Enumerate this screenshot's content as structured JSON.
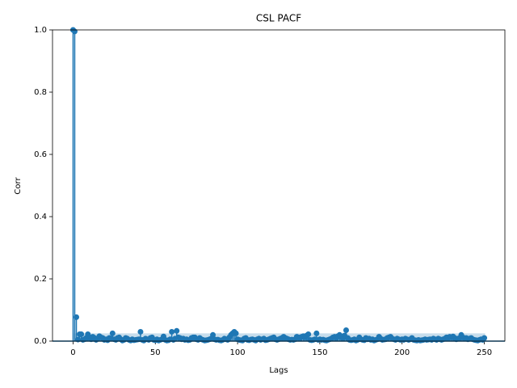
{
  "chart_data": {
    "type": "stem",
    "title": "CSL PACF",
    "x_label": "Lags",
    "y_label": "Corr",
    "color": "#1f77b4",
    "band_color": "#1f77b4",
    "xlim": [
      -12.5,
      262.5
    ],
    "ylim": [
      0,
      1
    ],
    "xticks": [
      0,
      50,
      100,
      150,
      200,
      250
    ],
    "yticks": [
      {
        "value": 0,
        "label": "0.0"
      },
      {
        "value": 0.2,
        "label": "0.2"
      },
      {
        "value": 0.4,
        "label": "0.4"
      },
      {
        "value": 0.6,
        "label": "0.6"
      },
      {
        "value": 0.8,
        "label": "0.8"
      },
      {
        "value": 1,
        "label": "1.0"
      }
    ],
    "conf_band": 0.025,
    "x": [
      0,
      1,
      2,
      3,
      4,
      5,
      6,
      7,
      8,
      9,
      10,
      11,
      12,
      13,
      14,
      15,
      16,
      17,
      18,
      19,
      20,
      21,
      22,
      23,
      24,
      25,
      26,
      27,
      28,
      29,
      30,
      31,
      32,
      33,
      34,
      35,
      36,
      37,
      38,
      39,
      40,
      41,
      42,
      43,
      44,
      45,
      46,
      47,
      48,
      49,
      50,
      51,
      52,
      53,
      54,
      55,
      56,
      57,
      58,
      59,
      60,
      61,
      62,
      63,
      64,
      65,
      66,
      67,
      68,
      69,
      70,
      71,
      72,
      73,
      74,
      75,
      76,
      77,
      78,
      79,
      80,
      81,
      82,
      83,
      84,
      85,
      86,
      87,
      88,
      89,
      90,
      91,
      92,
      93,
      94,
      95,
      96,
      97,
      98,
      99,
      100,
      101,
      102,
      103,
      104,
      105,
      106,
      107,
      108,
      109,
      110,
      111,
      112,
      113,
      114,
      115,
      116,
      117,
      118,
      119,
      120,
      121,
      122,
      123,
      124,
      125,
      126,
      127,
      128,
      129,
      130,
      131,
      132,
      133,
      134,
      135,
      136,
      137,
      138,
      139,
      140,
      141,
      142,
      143,
      144,
      145,
      146,
      147,
      148,
      149,
      150,
      151,
      152,
      153,
      154,
      155,
      156,
      157,
      158,
      159,
      160,
      161,
      162,
      163,
      164,
      165,
      166,
      167,
      168,
      169,
      170,
      171,
      172,
      173,
      174,
      175,
      176,
      177,
      178,
      179,
      180,
      181,
      182,
      183,
      184,
      185,
      186,
      187,
      188,
      189,
      190,
      191,
      192,
      193,
      194,
      195,
      196,
      197,
      198,
      199,
      200,
      201,
      202,
      203,
      204,
      205,
      206,
      207,
      208,
      209,
      210,
      211,
      212,
      213,
      214,
      215,
      216,
      217,
      218,
      219,
      220,
      221,
      222,
      223,
      224,
      225,
      226,
      227,
      228,
      229,
      230,
      231,
      232,
      233,
      234,
      235,
      236,
      237,
      238,
      239,
      240,
      241,
      242,
      243,
      244,
      245,
      246,
      247,
      248,
      249,
      250
    ],
    "values": [
      1.0,
      0.995,
      0.077,
      0.005,
      0.022,
      0.022,
      0.004,
      0.006,
      0.01,
      0.022,
      0.012,
      0.006,
      0.014,
      0.01,
      0.004,
      0.008,
      0.016,
      0.012,
      0.01,
      0.004,
      0.006,
      0.003,
      0.01,
      0.008,
      0.025,
      0.006,
      0.004,
      0.01,
      0.012,
      0.006,
      0.002,
      0.004,
      0.01,
      0.008,
      0.004,
      0.002,
      0.006,
      0.003,
      0.004,
      0.005,
      0.006,
      0.03,
      0.004,
      0.002,
      0.008,
      0.006,
      0.004,
      0.01,
      0.012,
      0.004,
      0.003,
      0.006,
      0.002,
      0.004,
      0.006,
      0.015,
      0.004,
      0.002,
      0.003,
      0.006,
      0.03,
      0.004,
      0.008,
      0.033,
      0.012,
      0.01,
      0.006,
      0.008,
      0.004,
      0.006,
      0.003,
      0.004,
      0.01,
      0.012,
      0.012,
      0.006,
      0.004,
      0.01,
      0.006,
      0.004,
      0.002,
      0.003,
      0.004,
      0.006,
      0.008,
      0.02,
      0.006,
      0.004,
      0.005,
      0.003,
      0.002,
      0.004,
      0.008,
      0.006,
      0.004,
      0.012,
      0.02,
      0.025,
      0.03,
      0.025,
      0.006,
      0.004,
      0.003,
      0.002,
      0.008,
      0.01,
      0.004,
      0.003,
      0.005,
      0.006,
      0.004,
      0.002,
      0.006,
      0.008,
      0.004,
      0.006,
      0.008,
      0.003,
      0.004,
      0.006,
      0.008,
      0.01,
      0.012,
      0.006,
      0.004,
      0.006,
      0.008,
      0.01,
      0.014,
      0.01,
      0.008,
      0.006,
      0.004,
      0.005,
      0.004,
      0.006,
      0.014,
      0.012,
      0.01,
      0.014,
      0.016,
      0.012,
      0.018,
      0.022,
      0.004,
      0.003,
      0.004,
      0.006,
      0.025,
      0.004,
      0.006,
      0.004,
      0.005,
      0.003,
      0.002,
      0.004,
      0.006,
      0.008,
      0.012,
      0.014,
      0.01,
      0.016,
      0.02,
      0.012,
      0.008,
      0.018,
      0.035,
      0.01,
      0.004,
      0.003,
      0.004,
      0.006,
      0.002,
      0.004,
      0.012,
      0.006,
      0.004,
      0.003,
      0.01,
      0.006,
      0.008,
      0.004,
      0.006,
      0.002,
      0.004,
      0.006,
      0.014,
      0.008,
      0.004,
      0.005,
      0.006,
      0.01,
      0.012,
      0.014,
      0.008,
      0.006,
      0.004,
      0.008,
      0.006,
      0.004,
      0.006,
      0.004,
      0.008,
      0.006,
      0.004,
      0.006,
      0.01,
      0.004,
      0.003,
      0.002,
      0.004,
      0.002,
      0.003,
      0.004,
      0.006,
      0.004,
      0.005,
      0.006,
      0.004,
      0.008,
      0.006,
      0.004,
      0.008,
      0.006,
      0.004,
      0.006,
      0.008,
      0.012,
      0.01,
      0.014,
      0.012,
      0.015,
      0.01,
      0.006,
      0.008,
      0.01,
      0.02,
      0.012,
      0.008,
      0.01,
      0.006,
      0.008,
      0.01,
      0.006,
      0.004,
      0.003,
      0.002,
      0.004,
      0.006,
      0.004,
      0.01
    ]
  }
}
